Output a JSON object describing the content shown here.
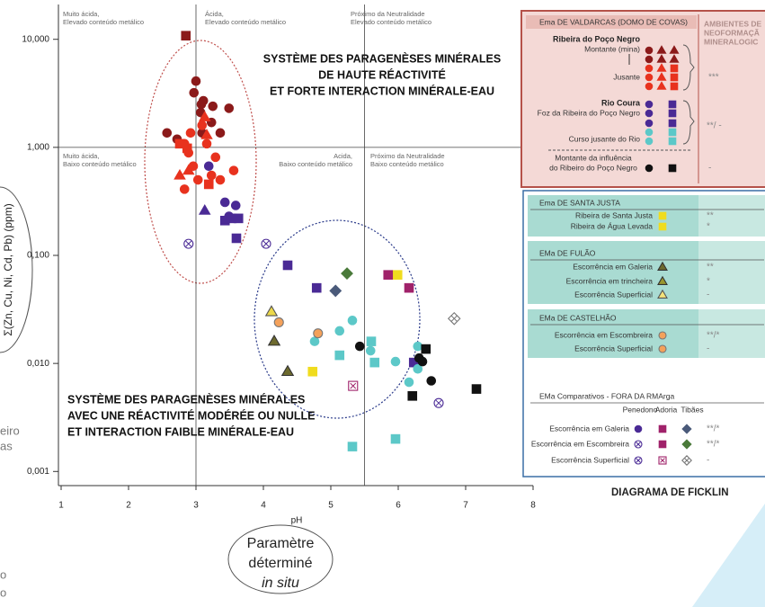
{
  "chart_data": {
    "type": "scatter",
    "y_label": "Σ(Zn, Cu, Ni, Cd, Pb) (ppm)",
    "x_label": "pH",
    "y_scale": "log",
    "xlim": [
      0.96,
      8.2
    ],
    "ylim": [
      0.00074,
      21
    ],
    "xticks": [
      1,
      2,
      3,
      4,
      5,
      6,
      7,
      8
    ],
    "yticks": [
      {
        "value": 10,
        "label": "10,000"
      },
      {
        "value": 1,
        "label": "1,000"
      },
      {
        "value": 0.1,
        "label": "0,100"
      },
      {
        "value": 0.01,
        "label": "0,010"
      },
      {
        "value": 0.001,
        "label": "0,001"
      }
    ],
    "boundaries": {
      "x": [
        3,
        5.5
      ],
      "y": [
        1
      ]
    },
    "regions": [
      {
        "lines": [
          "Muito ácida,",
          "Elevado conteúdo metálico"
        ]
      },
      {
        "lines": [
          "Ácida,",
          "Elevado conteúdo metálico"
        ]
      },
      {
        "lines": [
          "Próximo da Neutralidade",
          "Elevado conteúdo metálico"
        ]
      },
      {
        "lines": [
          "Muito ácida,",
          "Baixo conteúdo metálico"
        ]
      },
      {
        "lines": [
          "Acida,",
          "Baixo conteúdo metálico"
        ]
      },
      {
        "lines": [
          "Próximo da Neutralidade",
          "Baixo conteúdo metálico"
        ]
      }
    ],
    "annotations": [
      {
        "lines": [
          "SYSTÈME DES PARAGENÈSES MINÉRALES",
          "DE HAUTE RÉACTIVITÉ",
          "ET FORTE INTERACTION MINÉRALE-EAU"
        ]
      },
      {
        "lines": [
          "SYSTÈME DES PARAGENÈSES MINÉRALES",
          "AVEC UNE RÉACTIVITÉ MODÉRÉE OU NULLE",
          "ET INTERACTION FAIBLE MINÉRALE-EAU"
        ]
      }
    ],
    "parameter_note": [
      "Paramètre",
      "déterminé",
      "in situ"
    ],
    "diagram_title": "DIAGRAMA DE FICKLIN",
    "cropped_text": [
      "eiro",
      "as",
      "o",
      "o"
    ],
    "series": [
      {
        "marker": "circle",
        "color": "#8b1a1a",
        "x": [
          3.0,
          2.97,
          3.11,
          3.07,
          3.23,
          3.09,
          2.57,
          2.72,
          3.36,
          3.49,
          3.25,
          3.08
        ],
        "values": [
          4.1,
          3.2,
          2.7,
          2.1,
          1.7,
          1.36,
          1.36,
          1.19,
          1.36,
          2.3,
          2.4,
          2.5
        ]
      },
      {
        "marker": "square",
        "color": "#8b1a1a",
        "x": [
          2.85
        ],
        "values": [
          10.8
        ]
      },
      {
        "marker": "circle",
        "color": "#e8321e",
        "x": [
          2.83,
          2.89,
          3.16,
          3.29,
          2.96,
          3.23,
          3.56,
          3.03,
          2.83,
          3.36,
          3.09,
          2.92
        ],
        "values": [
          1.08,
          0.89,
          1.08,
          0.81,
          0.67,
          0.55,
          0.61,
          0.5,
          0.41,
          0.5,
          1.6,
          1.36
        ]
      },
      {
        "marker": "triangle",
        "color": "#e8321e",
        "x": [
          2.89,
          2.76,
          3.16,
          3.13
        ],
        "values": [
          0.61,
          0.55,
          1.3,
          1.9
        ]
      },
      {
        "marker": "square",
        "color": "#e8321e",
        "x": [
          2.87,
          2.76,
          3.19
        ],
        "values": [
          0.98,
          1.08,
          0.455
        ]
      },
      {
        "marker": "circle",
        "color": "#4a2a95",
        "x": [
          3.19,
          3.43,
          3.59,
          3.49
        ],
        "values": [
          0.67,
          0.31,
          0.29,
          0.23
        ]
      },
      {
        "marker": "square",
        "color": "#4a2a95",
        "x": [
          3.43,
          3.53,
          3.63,
          3.6,
          4.36,
          4.79,
          6.23
        ],
        "values": [
          0.21,
          0.22,
          0.22,
          0.144,
          0.081,
          0.05,
          0.0102
        ]
      },
      {
        "marker": "triangle",
        "color": "#4a2a95",
        "x": [
          3.13
        ],
        "values": [
          0.26
        ]
      },
      {
        "marker": "circle",
        "color": "#5cc8c8",
        "x": [
          5.13,
          4.76,
          5.32,
          5.96,
          5.59,
          6.16,
          6.29,
          6.29
        ],
        "values": [
          0.02,
          0.016,
          0.025,
          0.0104,
          0.0131,
          0.0067,
          0.0089,
          0.0144
        ]
      },
      {
        "marker": "square",
        "color": "#5cc8c8",
        "x": [
          5.13,
          5.65,
          5.6,
          5.96,
          5.32
        ],
        "values": [
          0.0119,
          0.0102,
          0.016,
          0.002,
          0.0017
        ]
      },
      {
        "marker": "circle",
        "color": "#111111",
        "x": [
          5.43,
          6.31,
          6.49,
          6.36
        ],
        "values": [
          0.0144,
          0.0112,
          0.0069,
          0.0104
        ]
      },
      {
        "marker": "square",
        "color": "#111111",
        "x": [
          6.41,
          6.21,
          7.16
        ],
        "values": [
          0.0136,
          0.005,
          0.0058
        ]
      },
      {
        "marker": "square",
        "color": "#f0dc1e",
        "x": [
          5.99,
          4.73
        ],
        "values": [
          0.066,
          0.0084
        ]
      },
      {
        "marker": "triangle",
        "color": "#ecd84a",
        "edge": "#555555",
        "x": [
          4.12
        ],
        "values": [
          0.03
        ]
      },
      {
        "marker": "triangle",
        "color": "#6d6a2e",
        "edge": "#333333",
        "x": [
          4.16,
          4.36
        ],
        "values": [
          0.016,
          0.0084
        ]
      },
      {
        "marker": "circle",
        "color": "#f4a15a",
        "edge": "#777777",
        "x": [
          4.23,
          4.81
        ],
        "values": [
          0.024,
          0.019
        ]
      },
      {
        "marker": "circle-x",
        "color": "#4a2a95",
        "x": [
          2.89,
          4.04,
          6.6
        ],
        "values": [
          0.128,
          0.128,
          0.0043
        ]
      },
      {
        "marker": "square",
        "color": "#a0226a",
        "x": [
          5.85,
          6.16
        ],
        "values": [
          0.066,
          0.05
        ]
      },
      {
        "marker": "diamond",
        "color": "#4a7a3a",
        "x": [
          5.24
        ],
        "values": [
          0.068
        ]
      },
      {
        "marker": "diamond",
        "color": "#4a5a7a",
        "x": [
          5.07
        ],
        "values": [
          0.047
        ]
      },
      {
        "marker": "diamond-x",
        "color": "#777777",
        "x": [
          6.83
        ],
        "values": [
          0.026
        ]
      },
      {
        "marker": "square-x",
        "color": "#a0226a",
        "x": [
          5.33
        ],
        "values": [
          0.0062
        ]
      }
    ],
    "legend_panel": {
      "valdarcas_title": "Ema DE VALDARCAS (DOMO DE COVAS)",
      "side_heading": [
        "AMBIENTES DE",
        "NEOFORMAÇÃ",
        "MINERALOGIC"
      ],
      "poco_negro": "Ribeira do Poço Negro",
      "montante_mina": "Montante (mina)",
      "jusante": "Jusante",
      "rating_jusante": "***",
      "rio_coura": "Rio Coura",
      "foz": "Foz da Ribeira do Poço Negro",
      "curso": "Curso jusante do Rio",
      "rating_coura": "**/ -",
      "montante_influencia": [
        "Montante da influência",
        "do Ribeiro do Poço Negro"
      ],
      "rating_montante": "-",
      "blocks": [
        {
          "title": "Ema DE SANTA JUSTA",
          "rows": [
            {
              "label": "Ribeira de Santa Justa",
              "rating": "**"
            },
            {
              "label": "Ribeira de Água Levada",
              "rating": "*"
            }
          ]
        },
        {
          "title": "EMa DE FULÃO",
          "rows": [
            {
              "label": "Escorrência em Galeria",
              "rating": "**"
            },
            {
              "label": "Escorrência em trincheira",
              "rating": "*"
            },
            {
              "label": "Escorrência Superficial",
              "rating": "-"
            }
          ]
        },
        {
          "title": "EMa DE CASTELHÃO",
          "rows": [
            {
              "label": "Escorrência em Escombreira",
              "rating": "**/*"
            },
            {
              "label": "Escorrência Superficial",
              "rating": "-"
            }
          ]
        },
        {
          "title": "EMa Comparativos  -  FORA DA RMArga",
          "columns": [
            "Penedono",
            "Adoria",
            "Tibães"
          ],
          "rows": [
            {
              "label": "Escorrência em Galeria",
              "rating": "**/*"
            },
            {
              "label": "Escorrência em Escombreira",
              "rating": "**/*"
            },
            {
              "label": "Escorrência Superficial",
              "rating": "-"
            }
          ]
        }
      ]
    }
  }
}
